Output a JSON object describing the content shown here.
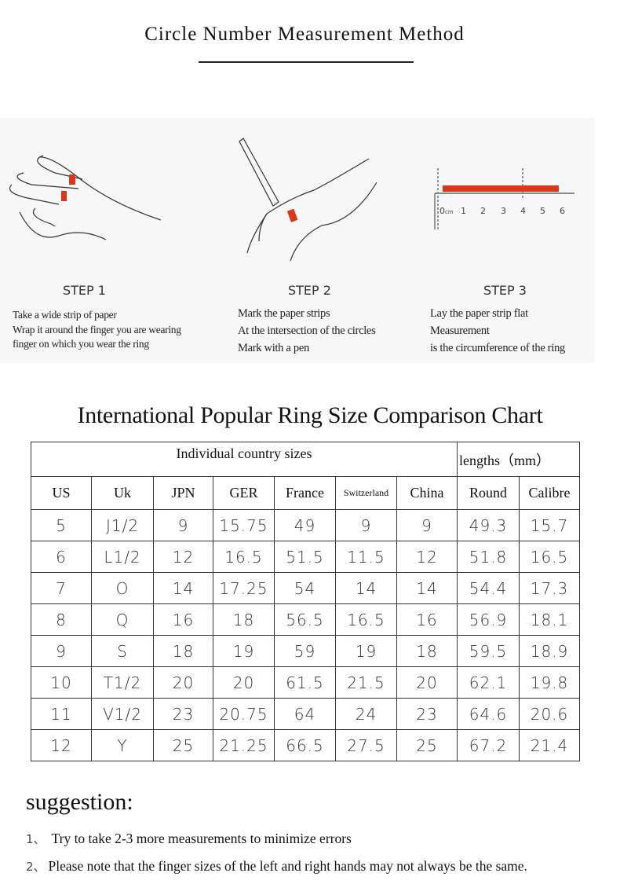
{
  "title": "Circle Number Measurement Method",
  "steps": [
    {
      "label": "STEP 1",
      "lines": [
        "Take a wide strip of paper",
        "Wrap it around the finger you are wearing",
        "finger on which you wear the ring"
      ]
    },
    {
      "label": "STEP 2",
      "lines": [
        "Mark the paper strips",
        "At the intersection of the circles",
        "Mark with a pen"
      ]
    },
    {
      "label": "STEP 3",
      "lines": [
        "Lay the paper strip flat",
        "Measurement",
        "is the circumference of the ring"
      ]
    }
  ],
  "ruler": {
    "unit": "cm",
    "ticks": [
      "0",
      "1",
      "2",
      "3",
      "4",
      "5",
      "6"
    ]
  },
  "colors": {
    "strip": "#d8381c",
    "panel": "#f7f7f7"
  },
  "chart_title": "International Popular Ring Size Comparison Chart",
  "table": {
    "group_headers": [
      "Individual country sizes",
      "lengths（mm）"
    ],
    "columns": [
      "US",
      "Uk",
      "JPN",
      "GER",
      "France",
      "Switzerland",
      "China",
      "Round",
      "Calibre"
    ],
    "rows": [
      [
        "5",
        "J1/2",
        "9",
        "15.75",
        "49",
        "9",
        "9",
        "49.3",
        "15.7"
      ],
      [
        "6",
        "L1/2",
        "12",
        "16.5",
        "51.5",
        "11.5",
        "12",
        "51.8",
        "16.5"
      ],
      [
        "7",
        "O",
        "14",
        "17.25",
        "54",
        "14",
        "14",
        "54.4",
        "17.3"
      ],
      [
        "8",
        "Q",
        "16",
        "18",
        "56.5",
        "16.5",
        "16",
        "56.9",
        "18.1"
      ],
      [
        "9",
        "S",
        "18",
        "19",
        "59",
        "19",
        "18",
        "59.5",
        "18.9"
      ],
      [
        "10",
        "T1/2",
        "20",
        "20",
        "61.5",
        "21.5",
        "20",
        "62.1",
        "19.8"
      ],
      [
        "11",
        "V1/2",
        "23",
        "20.75",
        "64",
        "24",
        "23",
        "64.6",
        "20.6"
      ],
      [
        "12",
        "Y",
        "25",
        "21.25",
        "66.5",
        "27.5",
        "25",
        "67.2",
        "21.4"
      ]
    ]
  },
  "suggestion": {
    "heading": "suggestion:",
    "items": [
      {
        "num": "1、",
        "text": "Try to take 2-3 more measurements to minimize errors"
      },
      {
        "num": "2、",
        "text": "Please note that the finger sizes of the left and right hands may not always be the same."
      }
    ]
  }
}
